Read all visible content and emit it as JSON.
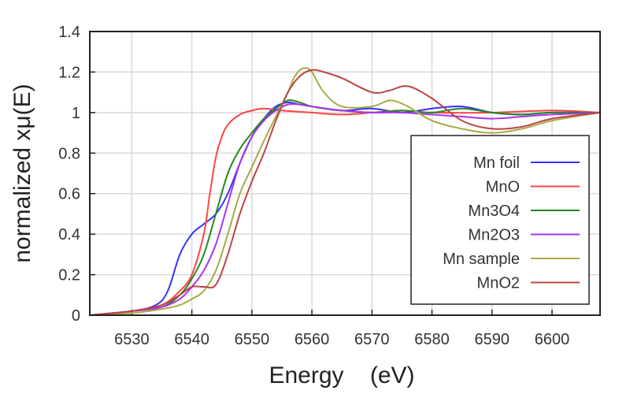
{
  "chart_data": {
    "type": "line",
    "xlabel": "Energy    (eV)",
    "ylabel": "normalized xμ(E)",
    "xlim": [
      6523,
      6608
    ],
    "ylim": [
      0,
      1.4
    ],
    "xticks": [
      6530,
      6540,
      6550,
      6560,
      6570,
      6580,
      6590,
      6600
    ],
    "yticks": [
      0,
      0.2,
      0.4,
      0.6,
      0.8,
      1,
      1.2,
      1.4
    ],
    "grid": true,
    "legend_position": "right",
    "series": [
      {
        "name": "Mn foil",
        "color": "#3333ff",
        "x": [
          6523,
          6530,
          6534,
          6536,
          6538,
          6540,
          6542,
          6544,
          6546,
          6548,
          6550,
          6552,
          6554,
          6556,
          6558,
          6560,
          6565,
          6570,
          6575,
          6580,
          6585,
          6590,
          6595,
          6600,
          6608
        ],
        "y": [
          0.0,
          0.02,
          0.05,
          0.12,
          0.3,
          0.4,
          0.45,
          0.5,
          0.6,
          0.75,
          0.88,
          0.97,
          1.03,
          1.05,
          1.04,
          1.03,
          1.01,
          1.02,
          1.0,
          1.02,
          1.03,
          1.0,
          0.99,
          1.0,
          1.0
        ]
      },
      {
        "name": "MnO",
        "color": "#ff4444",
        "x": [
          6523,
          6530,
          6535,
          6538,
          6540,
          6542,
          6543,
          6544,
          6545,
          6546,
          6548,
          6550,
          6552,
          6555,
          6560,
          6565,
          6570,
          6575,
          6580,
          6590,
          6600,
          6608
        ],
        "y": [
          0.0,
          0.02,
          0.05,
          0.12,
          0.2,
          0.4,
          0.6,
          0.78,
          0.88,
          0.94,
          0.99,
          1.01,
          1.02,
          1.01,
          1.0,
          0.99,
          1.0,
          1.01,
          1.0,
          1.0,
          1.01,
          1.0
        ]
      },
      {
        "name": "Mn3O4",
        "color": "#228822",
        "x": [
          6523,
          6530,
          6535,
          6538,
          6540,
          6542,
          6544,
          6546,
          6548,
          6550,
          6552,
          6554,
          6556,
          6558,
          6560,
          6565,
          6570,
          6575,
          6580,
          6585,
          6590,
          6595,
          6600,
          6608
        ],
        "y": [
          0.0,
          0.02,
          0.04,
          0.1,
          0.18,
          0.3,
          0.5,
          0.7,
          0.82,
          0.9,
          0.97,
          1.02,
          1.06,
          1.05,
          1.03,
          1.01,
          1.0,
          1.01,
          1.0,
          1.02,
          1.0,
          0.99,
          1.0,
          1.0
        ]
      },
      {
        "name": "Mn2O3",
        "color": "#aa33ee",
        "x": [
          6523,
          6530,
          6535,
          6538,
          6540,
          6542,
          6544,
          6546,
          6548,
          6550,
          6552,
          6554,
          6556,
          6558,
          6560,
          6565,
          6570,
          6575,
          6580,
          6585,
          6590,
          6595,
          6600,
          6608
        ],
        "y": [
          0.0,
          0.02,
          0.04,
          0.08,
          0.14,
          0.22,
          0.35,
          0.55,
          0.75,
          0.88,
          0.96,
          1.01,
          1.04,
          1.04,
          1.03,
          1.01,
          1.0,
          1.0,
          0.99,
          0.98,
          0.97,
          0.98,
          0.99,
          1.0
        ]
      },
      {
        "name": "Mn sample",
        "color": "#aaaa44",
        "x": [
          6523,
          6530,
          6535,
          6538,
          6540,
          6542,
          6544,
          6546,
          6548,
          6550,
          6552,
          6554,
          6556,
          6557,
          6558,
          6559,
          6560,
          6562,
          6565,
          6570,
          6573,
          6576,
          6580,
          6585,
          6590,
          6595,
          6600,
          6608
        ],
        "y": [
          0.0,
          0.01,
          0.03,
          0.05,
          0.08,
          0.12,
          0.22,
          0.4,
          0.6,
          0.73,
          0.86,
          0.98,
          1.1,
          1.17,
          1.21,
          1.22,
          1.2,
          1.1,
          1.03,
          1.03,
          1.06,
          1.03,
          0.96,
          0.92,
          0.9,
          0.92,
          0.96,
          1.0
        ]
      },
      {
        "name": "MnO2",
        "color": "#bb4444",
        "x": [
          6523,
          6530,
          6535,
          6538,
          6540,
          6542,
          6544,
          6546,
          6548,
          6550,
          6552,
          6554,
          6556,
          6558,
          6560,
          6562,
          6565,
          6570,
          6573,
          6576,
          6580,
          6585,
          6590,
          6595,
          6600,
          6608
        ],
        "y": [
          0.0,
          0.02,
          0.05,
          0.1,
          0.14,
          0.14,
          0.15,
          0.3,
          0.5,
          0.66,
          0.8,
          0.96,
          1.1,
          1.18,
          1.21,
          1.2,
          1.17,
          1.1,
          1.11,
          1.13,
          1.07,
          0.96,
          0.92,
          0.93,
          0.97,
          1.0
        ]
      }
    ]
  }
}
